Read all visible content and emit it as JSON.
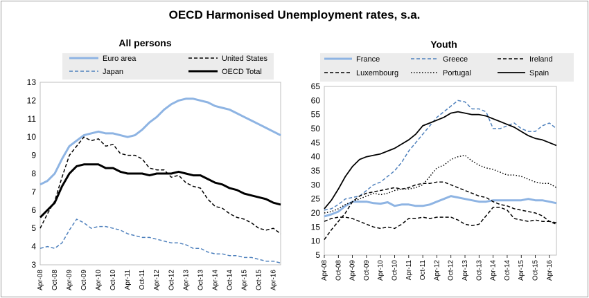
{
  "title": "OECD Harmonised Unemployment rates, s.a.",
  "x_ticks": [
    "Apr-08",
    "Oct-08",
    "Apr-09",
    "Oct-09",
    "Apr-10",
    "Oct-10",
    "Apr-11",
    "Oct-11",
    "Apr-12",
    "Oct-12",
    "Apr-13",
    "Oct-13",
    "Apr-14",
    "Oct-14",
    "Apr-15",
    "Oct-15",
    "Apr-16"
  ],
  "colors": {
    "blue": "#8EB4E3",
    "dash_blue": "#4F81BD",
    "black": "#000000"
  },
  "chart_data": [
    {
      "type": "line",
      "title": "All persons",
      "ylim": [
        3,
        13
      ],
      "yticks": [
        3,
        4,
        5,
        6,
        7,
        8,
        9,
        10,
        11,
        12,
        13
      ],
      "x_start": "Apr-08",
      "x_end": "Jul-16",
      "legend_position": "top",
      "series": [
        {
          "name": "Euro area",
          "color": "#8EB4E3",
          "style": "solid",
          "width": 3,
          "x": [
            "Apr-08",
            "Jul-08",
            "Oct-08",
            "Jan-09",
            "Apr-09",
            "Jul-09",
            "Oct-09",
            "Jan-10",
            "Apr-10",
            "Jul-10",
            "Oct-10",
            "Jan-11",
            "Apr-11",
            "Jul-11",
            "Oct-11",
            "Jan-12",
            "Apr-12",
            "Jul-12",
            "Oct-12",
            "Jan-13",
            "Apr-13",
            "Jul-13",
            "Oct-13",
            "Jan-14",
            "Apr-14",
            "Jul-14",
            "Oct-14",
            "Jan-15",
            "Apr-15",
            "Jul-15",
            "Oct-15",
            "Jan-16",
            "Apr-16",
            "Jul-16"
          ],
          "y": [
            7.4,
            7.6,
            8.0,
            8.8,
            9.5,
            9.8,
            10.1,
            10.2,
            10.3,
            10.2,
            10.2,
            10.1,
            10.0,
            10.1,
            10.4,
            10.8,
            11.1,
            11.5,
            11.8,
            12.0,
            12.1,
            12.1,
            12.0,
            11.9,
            11.7,
            11.6,
            11.5,
            11.3,
            11.1,
            10.9,
            10.7,
            10.5,
            10.3,
            10.1
          ]
        },
        {
          "name": "United States",
          "color": "#000000",
          "style": "dash",
          "width": 1.5,
          "x": [
            "Apr-08",
            "Jul-08",
            "Oct-08",
            "Jan-09",
            "Apr-09",
            "Jul-09",
            "Oct-09",
            "Jan-10",
            "Apr-10",
            "Jul-10",
            "Oct-10",
            "Jan-11",
            "Apr-11",
            "Jul-11",
            "Oct-11",
            "Jan-12",
            "Apr-12",
            "Jul-12",
            "Oct-12",
            "Jan-13",
            "Apr-13",
            "Jul-13",
            "Oct-13",
            "Jan-14",
            "Apr-14",
            "Jul-14",
            "Oct-14",
            "Jan-15",
            "Apr-15",
            "Jul-15",
            "Oct-15",
            "Jan-16",
            "Apr-16",
            "Jul-16"
          ],
          "y": [
            5.0,
            5.8,
            6.5,
            7.8,
            9.0,
            9.5,
            10.0,
            9.8,
            9.9,
            9.5,
            9.6,
            9.1,
            9.0,
            9.0,
            8.8,
            8.3,
            8.2,
            8.2,
            7.8,
            7.9,
            7.5,
            7.3,
            7.2,
            6.6,
            6.2,
            6.1,
            5.8,
            5.6,
            5.5,
            5.3,
            5.0,
            4.9,
            5.0,
            4.7
          ]
        },
        {
          "name": "Japan",
          "color": "#4F81BD",
          "style": "dash",
          "width": 1.5,
          "x": [
            "Apr-08",
            "Jul-08",
            "Oct-08",
            "Jan-09",
            "Apr-09",
            "Jul-09",
            "Oct-09",
            "Jan-10",
            "Apr-10",
            "Jul-10",
            "Oct-10",
            "Jan-11",
            "Apr-11",
            "Jul-11",
            "Oct-11",
            "Jan-12",
            "Apr-12",
            "Jul-12",
            "Oct-12",
            "Jan-13",
            "Apr-13",
            "Jul-13",
            "Oct-13",
            "Jan-14",
            "Apr-14",
            "Jul-14",
            "Oct-14",
            "Jan-15",
            "Apr-15",
            "Jul-15",
            "Oct-15",
            "Jan-16",
            "Apr-16",
            "Jul-16"
          ],
          "y": [
            3.9,
            4.0,
            3.9,
            4.2,
            4.9,
            5.5,
            5.3,
            5.0,
            5.1,
            5.1,
            5.0,
            4.9,
            4.7,
            4.6,
            4.5,
            4.5,
            4.4,
            4.3,
            4.2,
            4.2,
            4.1,
            3.9,
            3.9,
            3.7,
            3.6,
            3.6,
            3.5,
            3.5,
            3.4,
            3.4,
            3.3,
            3.2,
            3.2,
            3.1
          ]
        },
        {
          "name": "OECD Total",
          "color": "#000000",
          "style": "solid",
          "width": 3,
          "x": [
            "Apr-08",
            "Jul-08",
            "Oct-08",
            "Jan-09",
            "Apr-09",
            "Jul-09",
            "Oct-09",
            "Jan-10",
            "Apr-10",
            "Jul-10",
            "Oct-10",
            "Jan-11",
            "Apr-11",
            "Jul-11",
            "Oct-11",
            "Jan-12",
            "Apr-12",
            "Jul-12",
            "Oct-12",
            "Jan-13",
            "Apr-13",
            "Jul-13",
            "Oct-13",
            "Jan-14",
            "Apr-14",
            "Jul-14",
            "Oct-14",
            "Jan-15",
            "Apr-15",
            "Jul-15",
            "Oct-15",
            "Jan-16",
            "Apr-16",
            "Jul-16"
          ],
          "y": [
            5.6,
            6.0,
            6.4,
            7.3,
            8.0,
            8.4,
            8.5,
            8.5,
            8.5,
            8.3,
            8.3,
            8.1,
            8.0,
            8.0,
            8.0,
            7.9,
            8.0,
            8.0,
            8.0,
            8.1,
            8.0,
            7.9,
            7.9,
            7.7,
            7.5,
            7.4,
            7.2,
            7.1,
            6.9,
            6.8,
            6.7,
            6.6,
            6.4,
            6.3
          ]
        }
      ]
    },
    {
      "type": "line",
      "title": "Youth",
      "ylim": [
        5,
        65
      ],
      "yticks": [
        5,
        10,
        15,
        20,
        25,
        30,
        35,
        40,
        45,
        50,
        55,
        60,
        65
      ],
      "x_start": "Apr-08",
      "x_end": "Jul-16",
      "legend_position": "top",
      "series": [
        {
          "name": "France",
          "color": "#8EB4E3",
          "style": "solid",
          "width": 3,
          "x": [
            "Apr-08",
            "Jul-08",
            "Oct-08",
            "Jan-09",
            "Apr-09",
            "Jul-09",
            "Oct-09",
            "Jan-10",
            "Apr-10",
            "Jul-10",
            "Oct-10",
            "Jan-11",
            "Apr-11",
            "Jul-11",
            "Oct-11",
            "Jan-12",
            "Apr-12",
            "Jul-12",
            "Oct-12",
            "Jan-13",
            "Apr-13",
            "Jul-13",
            "Oct-13",
            "Jan-14",
            "Apr-14",
            "Jul-14",
            "Oct-14",
            "Jan-15",
            "Apr-15",
            "Jul-15",
            "Oct-15",
            "Jan-16",
            "Apr-16",
            "Jul-16"
          ],
          "y": [
            18.8,
            19.5,
            20.5,
            22.5,
            24.0,
            24.0,
            24.0,
            23.5,
            23.3,
            23.8,
            22.5,
            23.0,
            23.0,
            22.5,
            22.5,
            23.0,
            24.0,
            25.0,
            26.0,
            25.5,
            25.0,
            24.5,
            24.0,
            24.0,
            24.5,
            24.5,
            24.5,
            24.5,
            24.5,
            25.0,
            24.5,
            24.5,
            24.0,
            23.5
          ]
        },
        {
          "name": "Greece",
          "color": "#4F81BD",
          "style": "dash",
          "width": 1.5,
          "x": [
            "Apr-08",
            "Jul-08",
            "Oct-08",
            "Jan-09",
            "Apr-09",
            "Jul-09",
            "Oct-09",
            "Jan-10",
            "Apr-10",
            "Jul-10",
            "Oct-10",
            "Jan-11",
            "Apr-11",
            "Jul-11",
            "Oct-11",
            "Jan-12",
            "Apr-12",
            "Jul-12",
            "Oct-12",
            "Jan-13",
            "Apr-13",
            "Jul-13",
            "Oct-13",
            "Jan-14",
            "Apr-14",
            "Jul-14",
            "Oct-14",
            "Jan-15",
            "Apr-15",
            "Jul-15",
            "Oct-15",
            "Jan-16",
            "Apr-16",
            "Jul-16"
          ],
          "y": [
            21.0,
            21.5,
            23.0,
            25.0,
            25.5,
            26.0,
            28.0,
            30.0,
            31.0,
            33.0,
            35.0,
            38.0,
            42.0,
            45.0,
            48.0,
            51.0,
            54.0,
            56.0,
            58.0,
            60.0,
            59.5,
            57.0,
            57.0,
            56.0,
            50.0,
            50.0,
            51.0,
            52.0,
            50.0,
            49.0,
            49.0,
            51.0,
            52.0,
            50.0
          ]
        },
        {
          "name": "Ireland",
          "color": "#000000",
          "style": "dash",
          "width": 1.5,
          "x": [
            "Apr-08",
            "Jul-08",
            "Oct-08",
            "Jan-09",
            "Apr-09",
            "Jul-09",
            "Oct-09",
            "Jan-10",
            "Apr-10",
            "Jul-10",
            "Oct-10",
            "Jan-11",
            "Apr-11",
            "Jul-11",
            "Oct-11",
            "Jan-12",
            "Apr-12",
            "Jul-12",
            "Oct-12",
            "Jan-13",
            "Apr-13",
            "Jul-13",
            "Oct-13",
            "Jan-14",
            "Apr-14",
            "Jul-14",
            "Oct-14",
            "Jan-15",
            "Apr-15",
            "Jul-15",
            "Oct-15",
            "Jan-16",
            "Apr-16",
            "Jul-16"
          ],
          "y": [
            10.5,
            14.0,
            17.0,
            20.0,
            24.0,
            26.0,
            27.0,
            27.5,
            28.0,
            28.5,
            29.0,
            28.5,
            29.0,
            30.0,
            30.5,
            30.5,
            31.0,
            31.0,
            30.0,
            29.0,
            28.0,
            27.0,
            26.0,
            25.5,
            24.0,
            23.0,
            22.5,
            21.5,
            21.0,
            20.5,
            20.0,
            19.0,
            17.0,
            16.5
          ]
        },
        {
          "name": "Luxembourg",
          "color": "#000000",
          "style": "dash",
          "width": 1.5,
          "x": [
            "Apr-08",
            "Jul-08",
            "Oct-08",
            "Jan-09",
            "Apr-09",
            "Jul-09",
            "Oct-09",
            "Jan-10",
            "Apr-10",
            "Jul-10",
            "Oct-10",
            "Jan-11",
            "Apr-11",
            "Jul-11",
            "Oct-11",
            "Jan-12",
            "Apr-12",
            "Jul-12",
            "Oct-12",
            "Jan-13",
            "Apr-13",
            "Jul-13",
            "Oct-13",
            "Jan-14",
            "Apr-14",
            "Jul-14",
            "Oct-14",
            "Jan-15",
            "Apr-15",
            "Jul-15",
            "Oct-15",
            "Jan-16",
            "Apr-16",
            "Jul-16"
          ],
          "y": [
            17.0,
            18.0,
            18.5,
            18.5,
            18.0,
            17.0,
            16.0,
            15.0,
            14.5,
            15.0,
            14.5,
            16.0,
            18.0,
            18.0,
            18.5,
            18.0,
            18.5,
            18.5,
            18.5,
            17.5,
            16.0,
            15.5,
            16.0,
            19.0,
            22.0,
            22.0,
            21.0,
            18.0,
            17.5,
            17.0,
            17.5,
            17.0,
            17.0,
            16.0
          ]
        },
        {
          "name": "Portugal",
          "color": "#000000",
          "style": "dot",
          "width": 1.5,
          "x": [
            "Apr-08",
            "Jul-08",
            "Oct-08",
            "Jan-09",
            "Apr-09",
            "Jul-09",
            "Oct-09",
            "Jan-10",
            "Apr-10",
            "Jul-10",
            "Oct-10",
            "Jan-11",
            "Apr-11",
            "Jul-11",
            "Oct-11",
            "Jan-12",
            "Apr-12",
            "Jul-12",
            "Oct-12",
            "Jan-13",
            "Apr-13",
            "Jul-13",
            "Oct-13",
            "Jan-14",
            "Apr-14",
            "Jul-14",
            "Oct-14",
            "Jan-15",
            "Apr-15",
            "Jul-15",
            "Oct-15",
            "Jan-16",
            "Apr-16",
            "Jul-16"
          ],
          "y": [
            20.0,
            20.5,
            21.5,
            23.0,
            24.0,
            25.0,
            26.0,
            27.0,
            26.5,
            27.0,
            28.0,
            28.5,
            28.5,
            29.0,
            30.0,
            33.0,
            36.0,
            37.0,
            39.0,
            40.0,
            40.5,
            38.5,
            37.0,
            36.0,
            35.5,
            34.5,
            33.5,
            33.5,
            33.0,
            32.0,
            31.0,
            30.5,
            30.5,
            29.0
          ]
        },
        {
          "name": "Spain",
          "color": "#000000",
          "style": "solid",
          "width": 1.8,
          "x": [
            "Apr-08",
            "Jul-08",
            "Oct-08",
            "Jan-09",
            "Apr-09",
            "Jul-09",
            "Oct-09",
            "Jan-10",
            "Apr-10",
            "Jul-10",
            "Oct-10",
            "Jan-11",
            "Apr-11",
            "Jul-11",
            "Oct-11",
            "Jan-12",
            "Apr-12",
            "Jul-12",
            "Oct-12",
            "Jan-13",
            "Apr-13",
            "Jul-13",
            "Oct-13",
            "Jan-14",
            "Apr-14",
            "Jul-14",
            "Oct-14",
            "Jan-15",
            "Apr-15",
            "Jul-15",
            "Oct-15",
            "Jan-16",
            "Apr-16",
            "Jul-16"
          ],
          "y": [
            21.5,
            24.5,
            28.5,
            33.0,
            36.5,
            39.0,
            40.0,
            40.5,
            41.0,
            42.0,
            43.0,
            44.5,
            46.0,
            48.0,
            51.0,
            52.0,
            53.0,
            54.0,
            55.5,
            56.0,
            55.5,
            55.0,
            55.0,
            54.5,
            53.5,
            52.5,
            51.5,
            50.5,
            49.0,
            47.5,
            46.5,
            46.0,
            45.0,
            44.0
          ]
        }
      ]
    }
  ]
}
